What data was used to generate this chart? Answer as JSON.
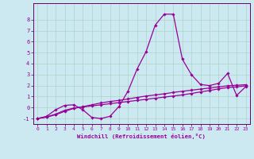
{
  "xlabel": "Windchill (Refroidissement éolien,°C)",
  "background_color": "#cce8f0",
  "grid_color": "#aad4c8",
  "line_color": "#990099",
  "spine_color": "#660066",
  "x_data": [
    0,
    1,
    2,
    3,
    4,
    5,
    6,
    7,
    8,
    9,
    10,
    11,
    12,
    13,
    14,
    15,
    16,
    17,
    18,
    19,
    20,
    21,
    22,
    23
  ],
  "line1_y": [
    -1.0,
    -0.8,
    -0.2,
    0.2,
    0.25,
    -0.2,
    -0.9,
    -1.0,
    -0.8,
    0.1,
    1.5,
    3.5,
    5.1,
    7.5,
    8.5,
    8.5,
    4.4,
    3.0,
    2.1,
    2.0,
    2.2,
    3.1,
    1.1,
    1.9
  ],
  "line2_y": [
    -1.0,
    -0.85,
    -0.6,
    -0.25,
    -0.05,
    0.05,
    0.15,
    0.25,
    0.35,
    0.45,
    0.55,
    0.65,
    0.75,
    0.85,
    0.95,
    1.05,
    1.15,
    1.28,
    1.42,
    1.55,
    1.7,
    1.82,
    1.88,
    1.98
  ],
  "line3_y": [
    -1.0,
    -0.88,
    -0.65,
    -0.35,
    -0.08,
    0.08,
    0.25,
    0.42,
    0.55,
    0.65,
    0.78,
    0.92,
    1.05,
    1.15,
    1.25,
    1.38,
    1.48,
    1.58,
    1.68,
    1.78,
    1.88,
    1.98,
    2.03,
    2.08
  ],
  "ylim": [
    -1.5,
    9.5
  ],
  "xlim": [
    -0.5,
    23.5
  ],
  "yticks": [
    -1,
    0,
    1,
    2,
    3,
    4,
    5,
    6,
    7,
    8
  ],
  "xticks": [
    0,
    1,
    2,
    3,
    4,
    5,
    6,
    7,
    8,
    9,
    10,
    11,
    12,
    13,
    14,
    15,
    16,
    17,
    18,
    19,
    20,
    21,
    22,
    23
  ],
  "marker": "D",
  "marker_size": 1.8,
  "line_width": 0.9
}
